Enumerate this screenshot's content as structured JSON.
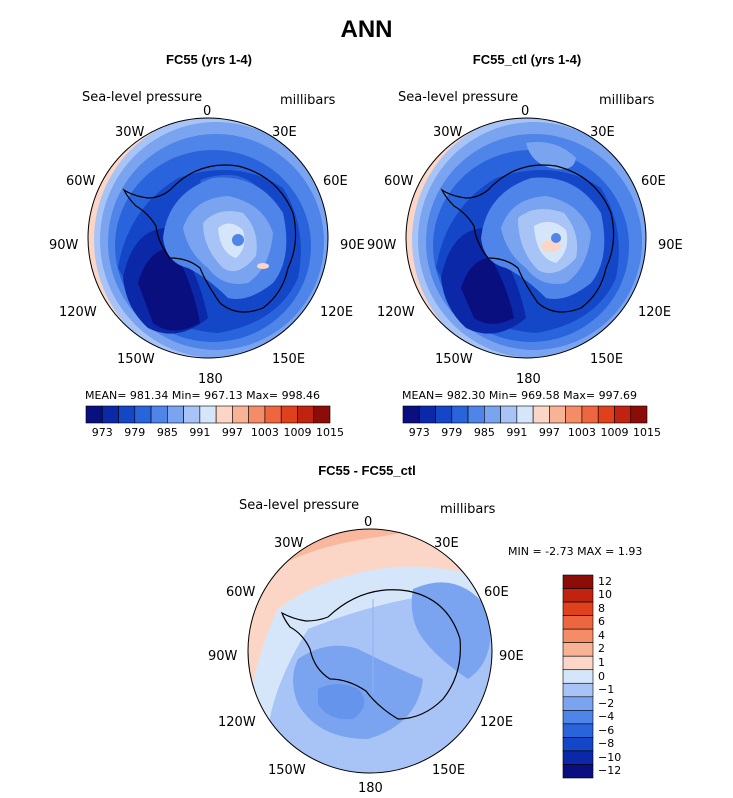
{
  "title": "ANN",
  "panels": [
    {
      "title": "FC55 (yrs 1-4)",
      "variable": "Sea-level pressure",
      "units": "millibars",
      "stats": "MEAN= 981.34   Min= 967.13   Max= 998.46"
    },
    {
      "title": "FC55_ctl (yrs 1-4)",
      "variable": "Sea-level pressure",
      "units": "millibars",
      "stats": "MEAN= 982.30   Min= 969.58   Max= 997.69"
    },
    {
      "title": "FC55 - FC55_ctl",
      "variable": "Sea-level pressure",
      "units": "millibars",
      "stats": "MIN =   -2.73  MAX =    1.93"
    }
  ],
  "longitudes": {
    "l0": "0",
    "l30e": "30E",
    "l60e": "60E",
    "l90e": "90E",
    "l120e": "120E",
    "l150e": "150E",
    "l180": "180",
    "l150w": "150W",
    "l120w": "120W",
    "l90w": "90W",
    "l60w": "60W",
    "l30w": "30W"
  },
  "colorbar_main": {
    "colors": [
      "#0a0f80",
      "#0a28a8",
      "#1446c8",
      "#2a64dc",
      "#4f84e8",
      "#7aa4f0",
      "#a8c4f6",
      "#d6e6fa",
      "#fbd6c6",
      "#f8b296",
      "#f48c66",
      "#ee6640",
      "#e0401c",
      "#c02410",
      "#8c0c08"
    ],
    "labels": [
      "973",
      "979",
      "985",
      "991",
      "997",
      "1003",
      "1009",
      "1015"
    ]
  },
  "colorbar_diff": {
    "colors": [
      "#0a0f80",
      "#0a28a8",
      "#1446c8",
      "#2a64dc",
      "#4f84e8",
      "#7aa4f0",
      "#a8c4f6",
      "#d6e6fa",
      "#fbd6c6",
      "#f8b296",
      "#f48c66",
      "#ee6640",
      "#e0401c",
      "#c02410",
      "#8c0c08"
    ],
    "labels": [
      "12",
      "10",
      "8",
      "6",
      "4",
      "2",
      "1",
      "0",
      "−1",
      "−2",
      "−4",
      "−6",
      "−8",
      "−10",
      "−12"
    ]
  }
}
